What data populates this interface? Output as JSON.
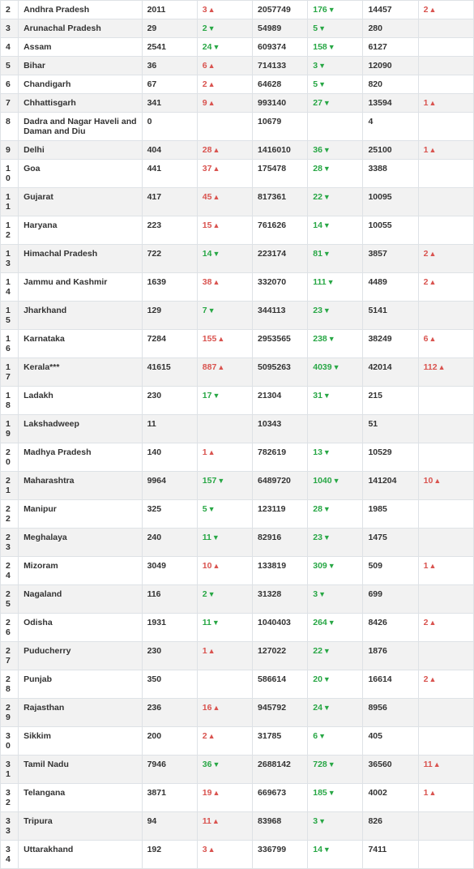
{
  "colors": {
    "up": "#d9534f",
    "down": "#28a745",
    "stripe_even": "#f2f2f2",
    "stripe_odd": "#ffffff",
    "border": "#dee2e6",
    "text": "#333333"
  },
  "columns": [
    "idx",
    "state",
    "c3",
    "c4",
    "c5",
    "c6",
    "c7",
    "c8"
  ],
  "rows": [
    {
      "idx": "2",
      "state": "Andhra Pradesh",
      "c3": "2011",
      "c4": {
        "v": "3",
        "d": "up"
      },
      "c5": "2057749",
      "c6": {
        "v": "176",
        "d": "down"
      },
      "c7": "14457",
      "c8": {
        "v": "2",
        "d": "up"
      }
    },
    {
      "idx": "3",
      "state": "Arunachal Pradesh",
      "c3": "29",
      "c4": {
        "v": "2",
        "d": "down"
      },
      "c5": "54989",
      "c6": {
        "v": "5",
        "d": "down"
      },
      "c7": "280",
      "c8": null
    },
    {
      "idx": "4",
      "state": "Assam",
      "c3": "2541",
      "c4": {
        "v": "24",
        "d": "down"
      },
      "c5": "609374",
      "c6": {
        "v": "158",
        "d": "down"
      },
      "c7": "6127",
      "c8": null
    },
    {
      "idx": "5",
      "state": "Bihar",
      "c3": "36",
      "c4": {
        "v": "6",
        "d": "up"
      },
      "c5": "714133",
      "c6": {
        "v": "3",
        "d": "down"
      },
      "c7": "12090",
      "c8": null
    },
    {
      "idx": "6",
      "state": "Chandigarh",
      "c3": "67",
      "c4": {
        "v": "2",
        "d": "up"
      },
      "c5": "64628",
      "c6": {
        "v": "5",
        "d": "down"
      },
      "c7": "820",
      "c8": null
    },
    {
      "idx": "7",
      "state": "Chhattisgarh",
      "c3": "341",
      "c4": {
        "v": "9",
        "d": "up"
      },
      "c5": "993140",
      "c6": {
        "v": "27",
        "d": "down"
      },
      "c7": "13594",
      "c8": {
        "v": "1",
        "d": "up"
      }
    },
    {
      "idx": "8",
      "state": "Dadra and Nagar Haveli and Daman and Diu",
      "c3": "0",
      "c4": null,
      "c5": "10679",
      "c6": null,
      "c7": "4",
      "c8": null
    },
    {
      "idx": "9",
      "state": "Delhi",
      "c3": "404",
      "c4": {
        "v": "28",
        "d": "up"
      },
      "c5": "1416010",
      "c6": {
        "v": "36",
        "d": "down"
      },
      "c7": "25100",
      "c8": {
        "v": "1",
        "d": "up"
      }
    },
    {
      "idx": "10",
      "state": "Goa",
      "c3": "441",
      "c4": {
        "v": "37",
        "d": "up"
      },
      "c5": "175478",
      "c6": {
        "v": "28",
        "d": "down"
      },
      "c7": "3388",
      "c8": null
    },
    {
      "idx": "11",
      "state": "Gujarat",
      "c3": "417",
      "c4": {
        "v": "45",
        "d": "up"
      },
      "c5": "817361",
      "c6": {
        "v": "22",
        "d": "down"
      },
      "c7": "10095",
      "c8": null
    },
    {
      "idx": "12",
      "state": "Haryana",
      "c3": "223",
      "c4": {
        "v": "15",
        "d": "up"
      },
      "c5": "761626",
      "c6": {
        "v": "14",
        "d": "down"
      },
      "c7": "10055",
      "c8": null
    },
    {
      "idx": "13",
      "state": "Himachal Pradesh",
      "c3": "722",
      "c4": {
        "v": "14",
        "d": "down"
      },
      "c5": "223174",
      "c6": {
        "v": "81",
        "d": "down"
      },
      "c7": "3857",
      "c8": {
        "v": "2",
        "d": "up"
      }
    },
    {
      "idx": "14",
      "state": "Jammu and Kashmir",
      "c3": "1639",
      "c4": {
        "v": "38",
        "d": "up"
      },
      "c5": "332070",
      "c6": {
        "v": "111",
        "d": "down"
      },
      "c7": "4489",
      "c8": {
        "v": "2",
        "d": "up"
      }
    },
    {
      "idx": "15",
      "state": "Jharkhand",
      "c3": "129",
      "c4": {
        "v": "7",
        "d": "down"
      },
      "c5": "344113",
      "c6": {
        "v": "23",
        "d": "down"
      },
      "c7": "5141",
      "c8": null
    },
    {
      "idx": "16",
      "state": "Karnataka",
      "c3": "7284",
      "c4": {
        "v": "155",
        "d": "up"
      },
      "c5": "2953565",
      "c6": {
        "v": "238",
        "d": "down"
      },
      "c7": "38249",
      "c8": {
        "v": "6",
        "d": "up"
      }
    },
    {
      "idx": "17",
      "state": "Kerala***",
      "c3": "41615",
      "c4": {
        "v": "887",
        "d": "up"
      },
      "c5": "5095263",
      "c6": {
        "v": "4039",
        "d": "down"
      },
      "c7": "42014",
      "c8": {
        "v": "112",
        "d": "up"
      }
    },
    {
      "idx": "18",
      "state": "Ladakh",
      "c3": "230",
      "c4": {
        "v": "17",
        "d": "down"
      },
      "c5": "21304",
      "c6": {
        "v": "31",
        "d": "down"
      },
      "c7": "215",
      "c8": null
    },
    {
      "idx": "19",
      "state": "Lakshadweep",
      "c3": "11",
      "c4": null,
      "c5": "10343",
      "c6": null,
      "c7": "51",
      "c8": null
    },
    {
      "idx": "20",
      "state": "Madhya Pradesh",
      "c3": "140",
      "c4": {
        "v": "1",
        "d": "up"
      },
      "c5": "782619",
      "c6": {
        "v": "13",
        "d": "down"
      },
      "c7": "10529",
      "c8": null
    },
    {
      "idx": "21",
      "state": "Maharashtra",
      "c3": "9964",
      "c4": {
        "v": "157",
        "d": "down"
      },
      "c5": "6489720",
      "c6": {
        "v": "1040",
        "d": "down"
      },
      "c7": "141204",
      "c8": {
        "v": "10",
        "d": "up"
      }
    },
    {
      "idx": "22",
      "state": "Manipur",
      "c3": "325",
      "c4": {
        "v": "5",
        "d": "down"
      },
      "c5": "123119",
      "c6": {
        "v": "28",
        "d": "down"
      },
      "c7": "1985",
      "c8": null
    },
    {
      "idx": "23",
      "state": "Meghalaya",
      "c3": "240",
      "c4": {
        "v": "11",
        "d": "down"
      },
      "c5": "82916",
      "c6": {
        "v": "23",
        "d": "down"
      },
      "c7": "1475",
      "c8": null
    },
    {
      "idx": "24",
      "state": "Mizoram",
      "c3": "3049",
      "c4": {
        "v": "10",
        "d": "up"
      },
      "c5": "133819",
      "c6": {
        "v": "309",
        "d": "down"
      },
      "c7": "509",
      "c8": {
        "v": "1",
        "d": "up"
      }
    },
    {
      "idx": "25",
      "state": "Nagaland",
      "c3": "116",
      "c4": {
        "v": "2",
        "d": "down"
      },
      "c5": "31328",
      "c6": {
        "v": "3",
        "d": "down"
      },
      "c7": "699",
      "c8": null
    },
    {
      "idx": "26",
      "state": "Odisha",
      "c3": "1931",
      "c4": {
        "v": "11",
        "d": "down"
      },
      "c5": "1040403",
      "c6": {
        "v": "264",
        "d": "down"
      },
      "c7": "8426",
      "c8": {
        "v": "2",
        "d": "up"
      }
    },
    {
      "idx": "27",
      "state": "Puducherry",
      "c3": "230",
      "c4": {
        "v": "1",
        "d": "up"
      },
      "c5": "127022",
      "c6": {
        "v": "22",
        "d": "down"
      },
      "c7": "1876",
      "c8": null
    },
    {
      "idx": "28",
      "state": "Punjab",
      "c3": "350",
      "c4": null,
      "c5": "586614",
      "c6": {
        "v": "20",
        "d": "down"
      },
      "c7": "16614",
      "c8": {
        "v": "2",
        "d": "up"
      }
    },
    {
      "idx": "29",
      "state": "Rajasthan",
      "c3": "236",
      "c4": {
        "v": "16",
        "d": "up"
      },
      "c5": "945792",
      "c6": {
        "v": "24",
        "d": "down"
      },
      "c7": "8956",
      "c8": null
    },
    {
      "idx": "30",
      "state": "Sikkim",
      "c3": "200",
      "c4": {
        "v": "2",
        "d": "up"
      },
      "c5": "31785",
      "c6": {
        "v": "6",
        "d": "down"
      },
      "c7": "405",
      "c8": null
    },
    {
      "idx": "31",
      "state": "Tamil Nadu",
      "c3": "7946",
      "c4": {
        "v": "36",
        "d": "down"
      },
      "c5": "2688142",
      "c6": {
        "v": "728",
        "d": "down"
      },
      "c7": "36560",
      "c8": {
        "v": "11",
        "d": "up"
      }
    },
    {
      "idx": "32",
      "state": "Telangana",
      "c3": "3871",
      "c4": {
        "v": "19",
        "d": "up"
      },
      "c5": "669673",
      "c6": {
        "v": "185",
        "d": "down"
      },
      "c7": "4002",
      "c8": {
        "v": "1",
        "d": "up"
      }
    },
    {
      "idx": "33",
      "state": "Tripura",
      "c3": "94",
      "c4": {
        "v": "11",
        "d": "up"
      },
      "c5": "83968",
      "c6": {
        "v": "3",
        "d": "down"
      },
      "c7": "826",
      "c8": null
    },
    {
      "idx": "34",
      "state": "Uttarakhand",
      "c3": "192",
      "c4": {
        "v": "3",
        "d": "up"
      },
      "c5": "336799",
      "c6": {
        "v": "14",
        "d": "down"
      },
      "c7": "7411",
      "c8": null
    }
  ]
}
